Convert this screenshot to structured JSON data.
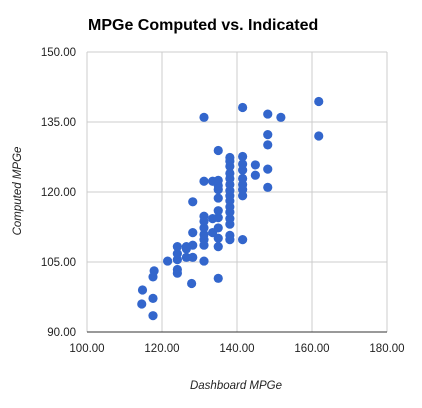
{
  "chart_data": {
    "type": "scatter",
    "title": "MPGe Computed vs. Indicated",
    "xlabel": "Dashboard MPGe",
    "ylabel": "Computed MPGe",
    "xlim": [
      100,
      180
    ],
    "ylim": [
      90,
      150
    ],
    "xticks": [
      "100.00",
      "120.00",
      "140.00",
      "160.00",
      "180.00"
    ],
    "yticks": [
      "90.00",
      "105.00",
      "120.00",
      "135.00",
      "150.00"
    ],
    "grid": true,
    "legend": "none",
    "marker_color": "#3366cc",
    "points": [
      [
        114.8,
        99.0
      ],
      [
        114.6,
        96.0
      ],
      [
        117.6,
        93.5
      ],
      [
        117.6,
        97.2
      ],
      [
        117.6,
        101.8
      ],
      [
        117.9,
        103.1
      ],
      [
        121.5,
        105.2
      ],
      [
        124.1,
        102.6
      ],
      [
        124.1,
        103.4
      ],
      [
        124.1,
        105.5
      ],
      [
        124.1,
        106.8
      ],
      [
        124.1,
        108.3
      ],
      [
        126.5,
        106.0
      ],
      [
        126.5,
        107.8
      ],
      [
        126.5,
        108.3
      ],
      [
        127.9,
        100.4
      ],
      [
        128.2,
        106.0
      ],
      [
        128.2,
        108.6
      ],
      [
        128.2,
        111.3
      ],
      [
        128.2,
        117.9
      ],
      [
        131.2,
        105.2
      ],
      [
        131.2,
        108.6
      ],
      [
        131.2,
        109.8
      ],
      [
        131.2,
        110.9
      ],
      [
        131.2,
        112.3
      ],
      [
        131.2,
        113.7
      ],
      [
        131.2,
        114.8
      ],
      [
        131.2,
        122.3
      ],
      [
        131.2,
        136.0
      ],
      [
        133.5,
        111.3
      ],
      [
        133.5,
        114.3
      ],
      [
        133.5,
        122.3
      ],
      [
        135.0,
        101.5
      ],
      [
        135.0,
        108.3
      ],
      [
        135.0,
        110.1
      ],
      [
        135.0,
        112.3
      ],
      [
        135.0,
        114.5
      ],
      [
        135.0,
        116.0
      ],
      [
        135.0,
        118.7
      ],
      [
        135.0,
        120.5
      ],
      [
        135.0,
        121.4
      ],
      [
        135.0,
        122.5
      ],
      [
        135.0,
        128.9
      ],
      [
        138.1,
        109.8
      ],
      [
        138.1,
        110.7
      ],
      [
        138.1,
        113.1
      ],
      [
        138.1,
        114.3
      ],
      [
        138.1,
        115.7
      ],
      [
        138.1,
        116.8
      ],
      [
        138.1,
        118.1
      ],
      [
        138.1,
        119.2
      ],
      [
        138.1,
        120.3
      ],
      [
        138.1,
        121.6
      ],
      [
        138.1,
        122.9
      ],
      [
        138.1,
        124.0
      ],
      [
        138.1,
        125.5
      ],
      [
        138.1,
        126.6
      ],
      [
        138.1,
        127.4
      ],
      [
        141.5,
        109.8
      ],
      [
        141.5,
        119.2
      ],
      [
        141.5,
        120.5
      ],
      [
        141.5,
        121.6
      ],
      [
        141.5,
        122.9
      ],
      [
        141.5,
        124.7
      ],
      [
        141.5,
        126.0
      ],
      [
        141.5,
        127.6
      ],
      [
        141.5,
        138.1
      ],
      [
        144.9,
        123.6
      ],
      [
        144.9,
        125.8
      ],
      [
        148.2,
        121.0
      ],
      [
        148.2,
        124.9
      ],
      [
        148.2,
        130.1
      ],
      [
        148.2,
        132.3
      ],
      [
        148.2,
        136.7
      ],
      [
        151.7,
        136.0
      ],
      [
        161.8,
        132.0
      ],
      [
        161.8,
        139.4
      ]
    ]
  }
}
